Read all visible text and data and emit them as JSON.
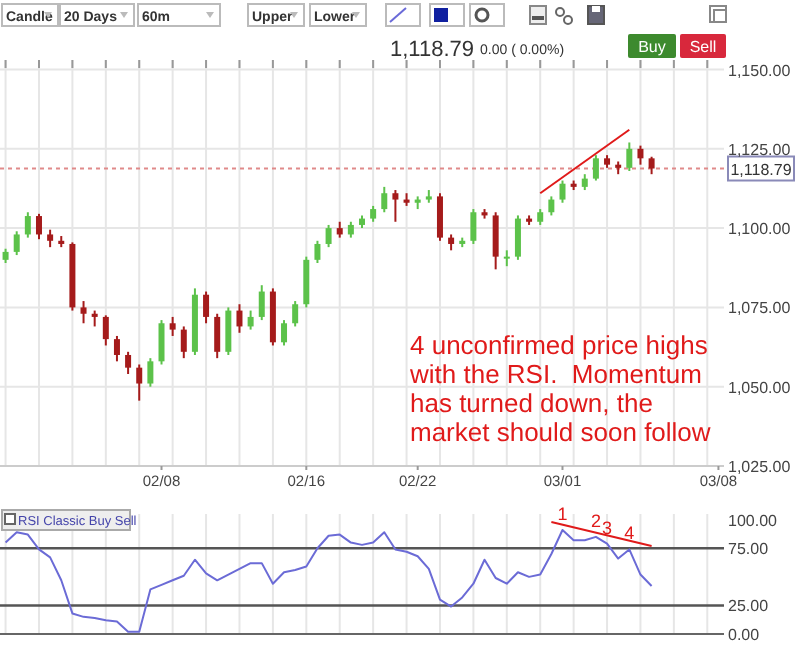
{
  "chart_data": [
    {
      "type": "candlestick",
      "ylim": [
        1025,
        1153
      ],
      "grid": true,
      "categories": [
        null,
        null,
        null,
        null,
        null,
        null,
        null,
        null,
        null,
        null,
        null,
        null,
        null,
        null,
        "02/08",
        null,
        null,
        null,
        null,
        null,
        null,
        null,
        null,
        null,
        null,
        null,
        null,
        "02/16",
        null,
        null,
        null,
        null,
        null,
        null,
        null,
        null,
        null,
        "02/22",
        null,
        null,
        null,
        null,
        null,
        null,
        null,
        null,
        null,
        null,
        null,
        null,
        "03/01",
        null,
        null,
        null,
        null,
        null,
        null,
        null,
        null,
        null,
        null,
        null,
        null,
        null,
        "03/08"
      ],
      "yticks": [
        {
          "value": 1025,
          "label": "1,025.00"
        },
        {
          "value": 1050,
          "label": "1,050.00"
        },
        {
          "value": 1075,
          "label": "1,075.00"
        },
        {
          "value": 1100,
          "label": "1,100.00"
        },
        {
          "value": 1125,
          "label": "1,125.00"
        },
        {
          "value": 1150,
          "label": "1,150.00"
        }
      ],
      "ohlc": [
        [
          1090,
          1093.5,
          1089,
          1092.5
        ],
        [
          1092.5,
          1099,
          1091.5,
          1098
        ],
        [
          1098,
          1105,
          1097,
          1103.8
        ],
        [
          1103.8,
          1104.5,
          1096.5,
          1098
        ],
        [
          1098,
          1099.5,
          1094,
          1096
        ],
        [
          1096,
          1097.5,
          1094,
          1095
        ],
        [
          1095,
          1095.5,
          1074,
          1075
        ],
        [
          1075,
          1077,
          1070,
          1073
        ],
        [
          1073,
          1074,
          1069,
          1072
        ],
        [
          1072,
          1072.5,
          1063,
          1065
        ],
        [
          1065,
          1066,
          1058,
          1060
        ],
        [
          1060,
          1061,
          1054,
          1056
        ],
        [
          1056,
          1057,
          1045.6,
          1051
        ],
        [
          1051,
          1059,
          1050,
          1058
        ],
        [
          1058,
          1071,
          1057,
          1070
        ],
        [
          1070,
          1072,
          1066,
          1068
        ],
        [
          1068,
          1069,
          1059,
          1061
        ],
        [
          1061,
          1081,
          1060,
          1079
        ],
        [
          1079,
          1080,
          1070,
          1072
        ],
        [
          1072,
          1073,
          1059,
          1061
        ],
        [
          1061,
          1075,
          1060,
          1074
        ],
        [
          1074,
          1076,
          1067,
          1069
        ],
        [
          1069,
          1074,
          1068,
          1072
        ],
        [
          1072,
          1082,
          1071,
          1080
        ],
        [
          1080,
          1081,
          1063,
          1064
        ],
        [
          1064,
          1071,
          1063,
          1070
        ],
        [
          1070,
          1077,
          1069,
          1076
        ],
        [
          1076,
          1091,
          1075,
          1090
        ],
        [
          1090,
          1096,
          1089,
          1095
        ],
        [
          1095,
          1101,
          1094,
          1100
        ],
        [
          1100,
          1102,
          1097,
          1098
        ],
        [
          1098,
          1102,
          1097,
          1101
        ],
        [
          1101,
          1104,
          1100,
          1103
        ],
        [
          1103,
          1107,
          1102,
          1106
        ],
        [
          1106,
          1113,
          1105,
          1111
        ],
        [
          1111,
          1112,
          1102,
          1109
        ],
        [
          1109,
          1111,
          1107,
          1108
        ],
        [
          1108,
          1110,
          1106,
          1109
        ],
        [
          1109,
          1112,
          1108,
          1110
        ],
        [
          1110,
          1111,
          1096,
          1097
        ],
        [
          1097,
          1098,
          1093,
          1095
        ],
        [
          1095,
          1097,
          1094,
          1096
        ],
        [
          1096,
          1106,
          1095,
          1105
        ],
        [
          1105,
          1106,
          1103,
          1104
        ],
        [
          1104,
          1105,
          1087,
          1091
        ],
        [
          1091,
          1093,
          1088,
          1091
        ],
        [
          1091,
          1104,
          1090,
          1103
        ],
        [
          1103,
          1104,
          1101,
          1102
        ],
        [
          1102,
          1106,
          1101,
          1105
        ],
        [
          1105,
          1110,
          1104,
          1109
        ],
        [
          1109,
          1115,
          1108,
          1114
        ],
        [
          1114,
          1115,
          1112,
          1113
        ],
        [
          1113,
          1117,
          1112,
          1115.6
        ],
        [
          1115.6,
          1123,
          1115,
          1122
        ],
        [
          1122,
          1123,
          1119,
          1120
        ],
        [
          1120,
          1121,
          1117,
          1119
        ],
        [
          1119,
          1127,
          1118,
          1125
        ],
        [
          1125,
          1126,
          1120,
          1122
        ],
        [
          1122,
          1122.5,
          1117,
          1118.79
        ],
        null,
        null,
        null,
        null,
        null,
        null
      ],
      "series": [
        {
          "type": "line",
          "color": "#e01a1a",
          "values": [
            null,
            null,
            null,
            null,
            null,
            null,
            null,
            null,
            null,
            null,
            null,
            null,
            null,
            null,
            null,
            null,
            null,
            null,
            null,
            null,
            null,
            null,
            null,
            null,
            null,
            null,
            null,
            null,
            null,
            null,
            null,
            null,
            null,
            null,
            null,
            null,
            null,
            null,
            null,
            null,
            null,
            null,
            null,
            null,
            null,
            null,
            null,
            null,
            1111,
            null,
            null,
            null,
            null,
            null,
            null,
            null,
            1131,
            null,
            null,
            null,
            null,
            null,
            null,
            null,
            null
          ]
        }
      ],
      "ref_lines": [
        {
          "axis": "y",
          "value": 1118.79,
          "label": "1,118.79",
          "color": "#e08a8a",
          "line_style": "dotted"
        }
      ],
      "annotations": [
        "4 unconfirmed price highs with the RSI.  Momentum has turned down, the market should soon follow",
        "Candle",
        "20 Days",
        "60m",
        "Upper",
        "Lower",
        "1,118.79",
        "0.00 ( 0.00%)",
        "Buy",
        "Sell"
      ]
    },
    {
      "type": "line",
      "title": "RSI Classic Buy Sell",
      "ylim": [
        0,
        105
      ],
      "grid": "x",
      "tick_labels": "y",
      "marker": "none",
      "categories": [
        null,
        null,
        null,
        null,
        null,
        null,
        null,
        null,
        null,
        null,
        null,
        null,
        null,
        null,
        null,
        null,
        null,
        null,
        null,
        null,
        null,
        null,
        null,
        null,
        null,
        null,
        null,
        null,
        null,
        null,
        null,
        null,
        null,
        null,
        null,
        null,
        null,
        null,
        null,
        null,
        null,
        null,
        null,
        null,
        null,
        null,
        null,
        null,
        null,
        null,
        null,
        null,
        null,
        null,
        null,
        null,
        null,
        null,
        null,
        null,
        null,
        null,
        null,
        null,
        null
      ],
      "yticks": [
        {
          "value": 0,
          "label": "0.00"
        },
        {
          "value": 25,
          "label": "25.00"
        },
        {
          "value": 75,
          "label": "75.00"
        },
        {
          "value": 100,
          "label": "100.00"
        }
      ],
      "ref_lines": [
        {
          "axis": "y",
          "value": 75,
          "color": "#555555"
        },
        {
          "axis": "y",
          "value": 25,
          "color": "#555555"
        }
      ],
      "series": [
        {
          "color": "#6b6bd6",
          "values": [
            80,
            89,
            87,
            74,
            67,
            47,
            18,
            15,
            14,
            12,
            11,
            2,
            2,
            39,
            43,
            47,
            51,
            65,
            53,
            47,
            52,
            57,
            62,
            62,
            44,
            54,
            56,
            59,
            75,
            86,
            87,
            80,
            78,
            80,
            89,
            74,
            72,
            68,
            57,
            30,
            24,
            32,
            44,
            65,
            49,
            44,
            54,
            50,
            52,
            70,
            91,
            82,
            82,
            85,
            79,
            66,
            74,
            52,
            42,
            null,
            null,
            null,
            null,
            null,
            null
          ]
        },
        {
          "color": "#e01a1a",
          "values": [
            null,
            null,
            null,
            null,
            null,
            null,
            null,
            null,
            null,
            null,
            null,
            null,
            null,
            null,
            null,
            null,
            null,
            null,
            null,
            null,
            null,
            null,
            null,
            null,
            null,
            null,
            null,
            null,
            null,
            null,
            null,
            null,
            null,
            null,
            null,
            null,
            null,
            null,
            null,
            null,
            null,
            null,
            null,
            null,
            null,
            null,
            null,
            null,
            null,
            98,
            null,
            null,
            null,
            null,
            null,
            null,
            null,
            null,
            77,
            null,
            null,
            null,
            null,
            null,
            null
          ]
        }
      ],
      "annotations": [
        {
          "text": "1",
          "y": 91
        },
        {
          "text": "2",
          "y": 85
        },
        {
          "text": "3",
          "y": 79
        },
        {
          "text": "4",
          "y": 74
        }
      ]
    }
  ]
}
